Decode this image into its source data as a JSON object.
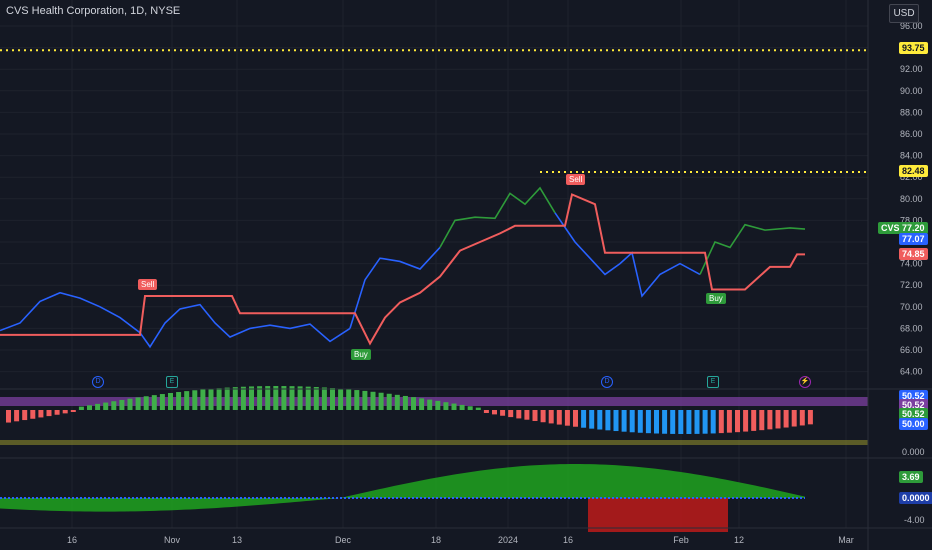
{
  "header": {
    "title": "CVS Health Corporation, 1D, NYSE",
    "currency": "USD"
  },
  "price_axis": {
    "ticks": [
      "96.00",
      "94.00",
      "92.00",
      "90.00",
      "88.00",
      "86.00",
      "84.00",
      "82.00",
      "80.00",
      "78.00",
      "76.00",
      "74.00",
      "72.00",
      "70.00",
      "68.00",
      "66.00",
      "64.00"
    ]
  },
  "time_axis": {
    "ticks": [
      "16",
      "Nov",
      "13",
      "Dec",
      "18",
      "2024",
      "16",
      "Feb",
      "12",
      "Mar"
    ]
  },
  "levels": {
    "upper": "93.75",
    "recent_high": "82.48"
  },
  "last_price": {
    "symbol": "CVS",
    "close": "77.20",
    "secondary": "77.07",
    "stop": "74.85"
  },
  "signals": {
    "sell1": "Sell",
    "buy1": "Buy",
    "sell2": "Sell",
    "buy2": "Buy"
  },
  "events": {
    "e1": "D",
    "e2": "E",
    "e3": "D",
    "e4": "E",
    "e5": "⚡"
  },
  "osc1": {
    "v1": "50.52",
    "v2": "50.52",
    "v3": "50.52",
    "v4": "50.00",
    "zero": "0.000"
  },
  "osc2": {
    "value": "3.69",
    "zero": "0.0000",
    "low": "-4.00"
  },
  "colors": {
    "background": "#141823",
    "up": "#26a69a",
    "green": "#2e9b3a",
    "blue": "#2962ff",
    "red": "#f05d5d",
    "yellow": "#ffeb3b",
    "purple": "#7b3fa0"
  }
}
